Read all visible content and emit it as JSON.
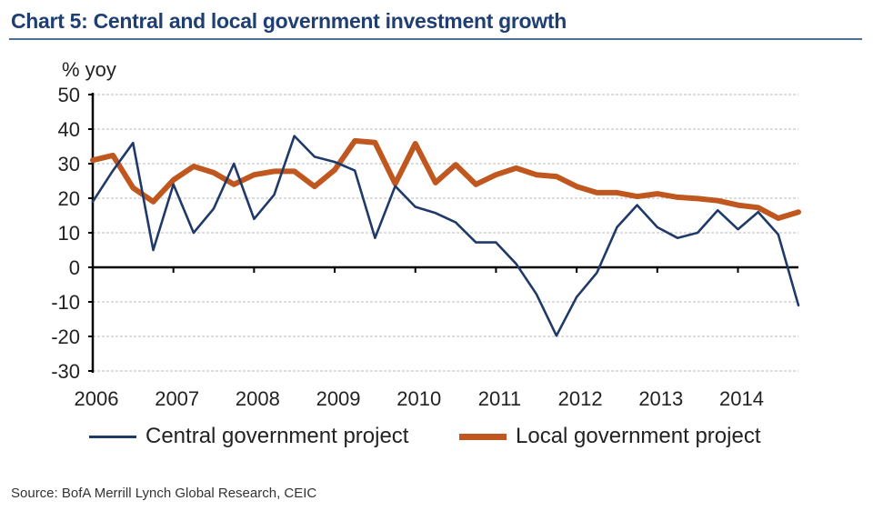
{
  "chart_data": {
    "type": "line",
    "title": "Chart 5: Central and local government investment growth",
    "ylabel": "% yoy",
    "xlabel": "",
    "ylim": [
      -30,
      50
    ],
    "yticks": [
      50,
      40,
      30,
      20,
      10,
      0,
      -10,
      -20,
      -30
    ],
    "xticks": [
      "2006",
      "2007",
      "2008",
      "2009",
      "2010",
      "2011",
      "2012",
      "2013",
      "2014"
    ],
    "x_start_year": 2006,
    "frequency": "quarterly",
    "grid": true,
    "legend_position": "bottom",
    "series": [
      {
        "name": "Central government project",
        "color": "#1f3a68",
        "values": [
          19,
          28,
          36,
          5,
          24,
          10,
          17,
          30,
          14,
          21,
          38,
          32,
          30.5,
          28,
          8.5,
          23.5,
          17.5,
          15.7,
          13,
          7.2,
          7.2,
          1,
          -7.7,
          -19.8,
          -8.6,
          -1.6,
          11.6,
          18,
          11.6,
          8.5,
          10,
          16.5,
          11,
          16,
          9.5,
          -11
        ]
      },
      {
        "name": "Local government project",
        "color": "#c0571f",
        "values": [
          31,
          32.4,
          23,
          19,
          25.3,
          29.2,
          27.4,
          24,
          26.8,
          27.8,
          27.8,
          23.4,
          28.2,
          36.6,
          36.1,
          24.2,
          35.8,
          24.5,
          29.7,
          24,
          26.8,
          28.7,
          26.8,
          26.3,
          23.4,
          21.6,
          21.6,
          20.5,
          21.3,
          20.3,
          19.9,
          19.3,
          18,
          17.3,
          14.2,
          16
        ]
      }
    ],
    "source": "Source: BofA Merrill Lynch Global Research, CEIC"
  }
}
